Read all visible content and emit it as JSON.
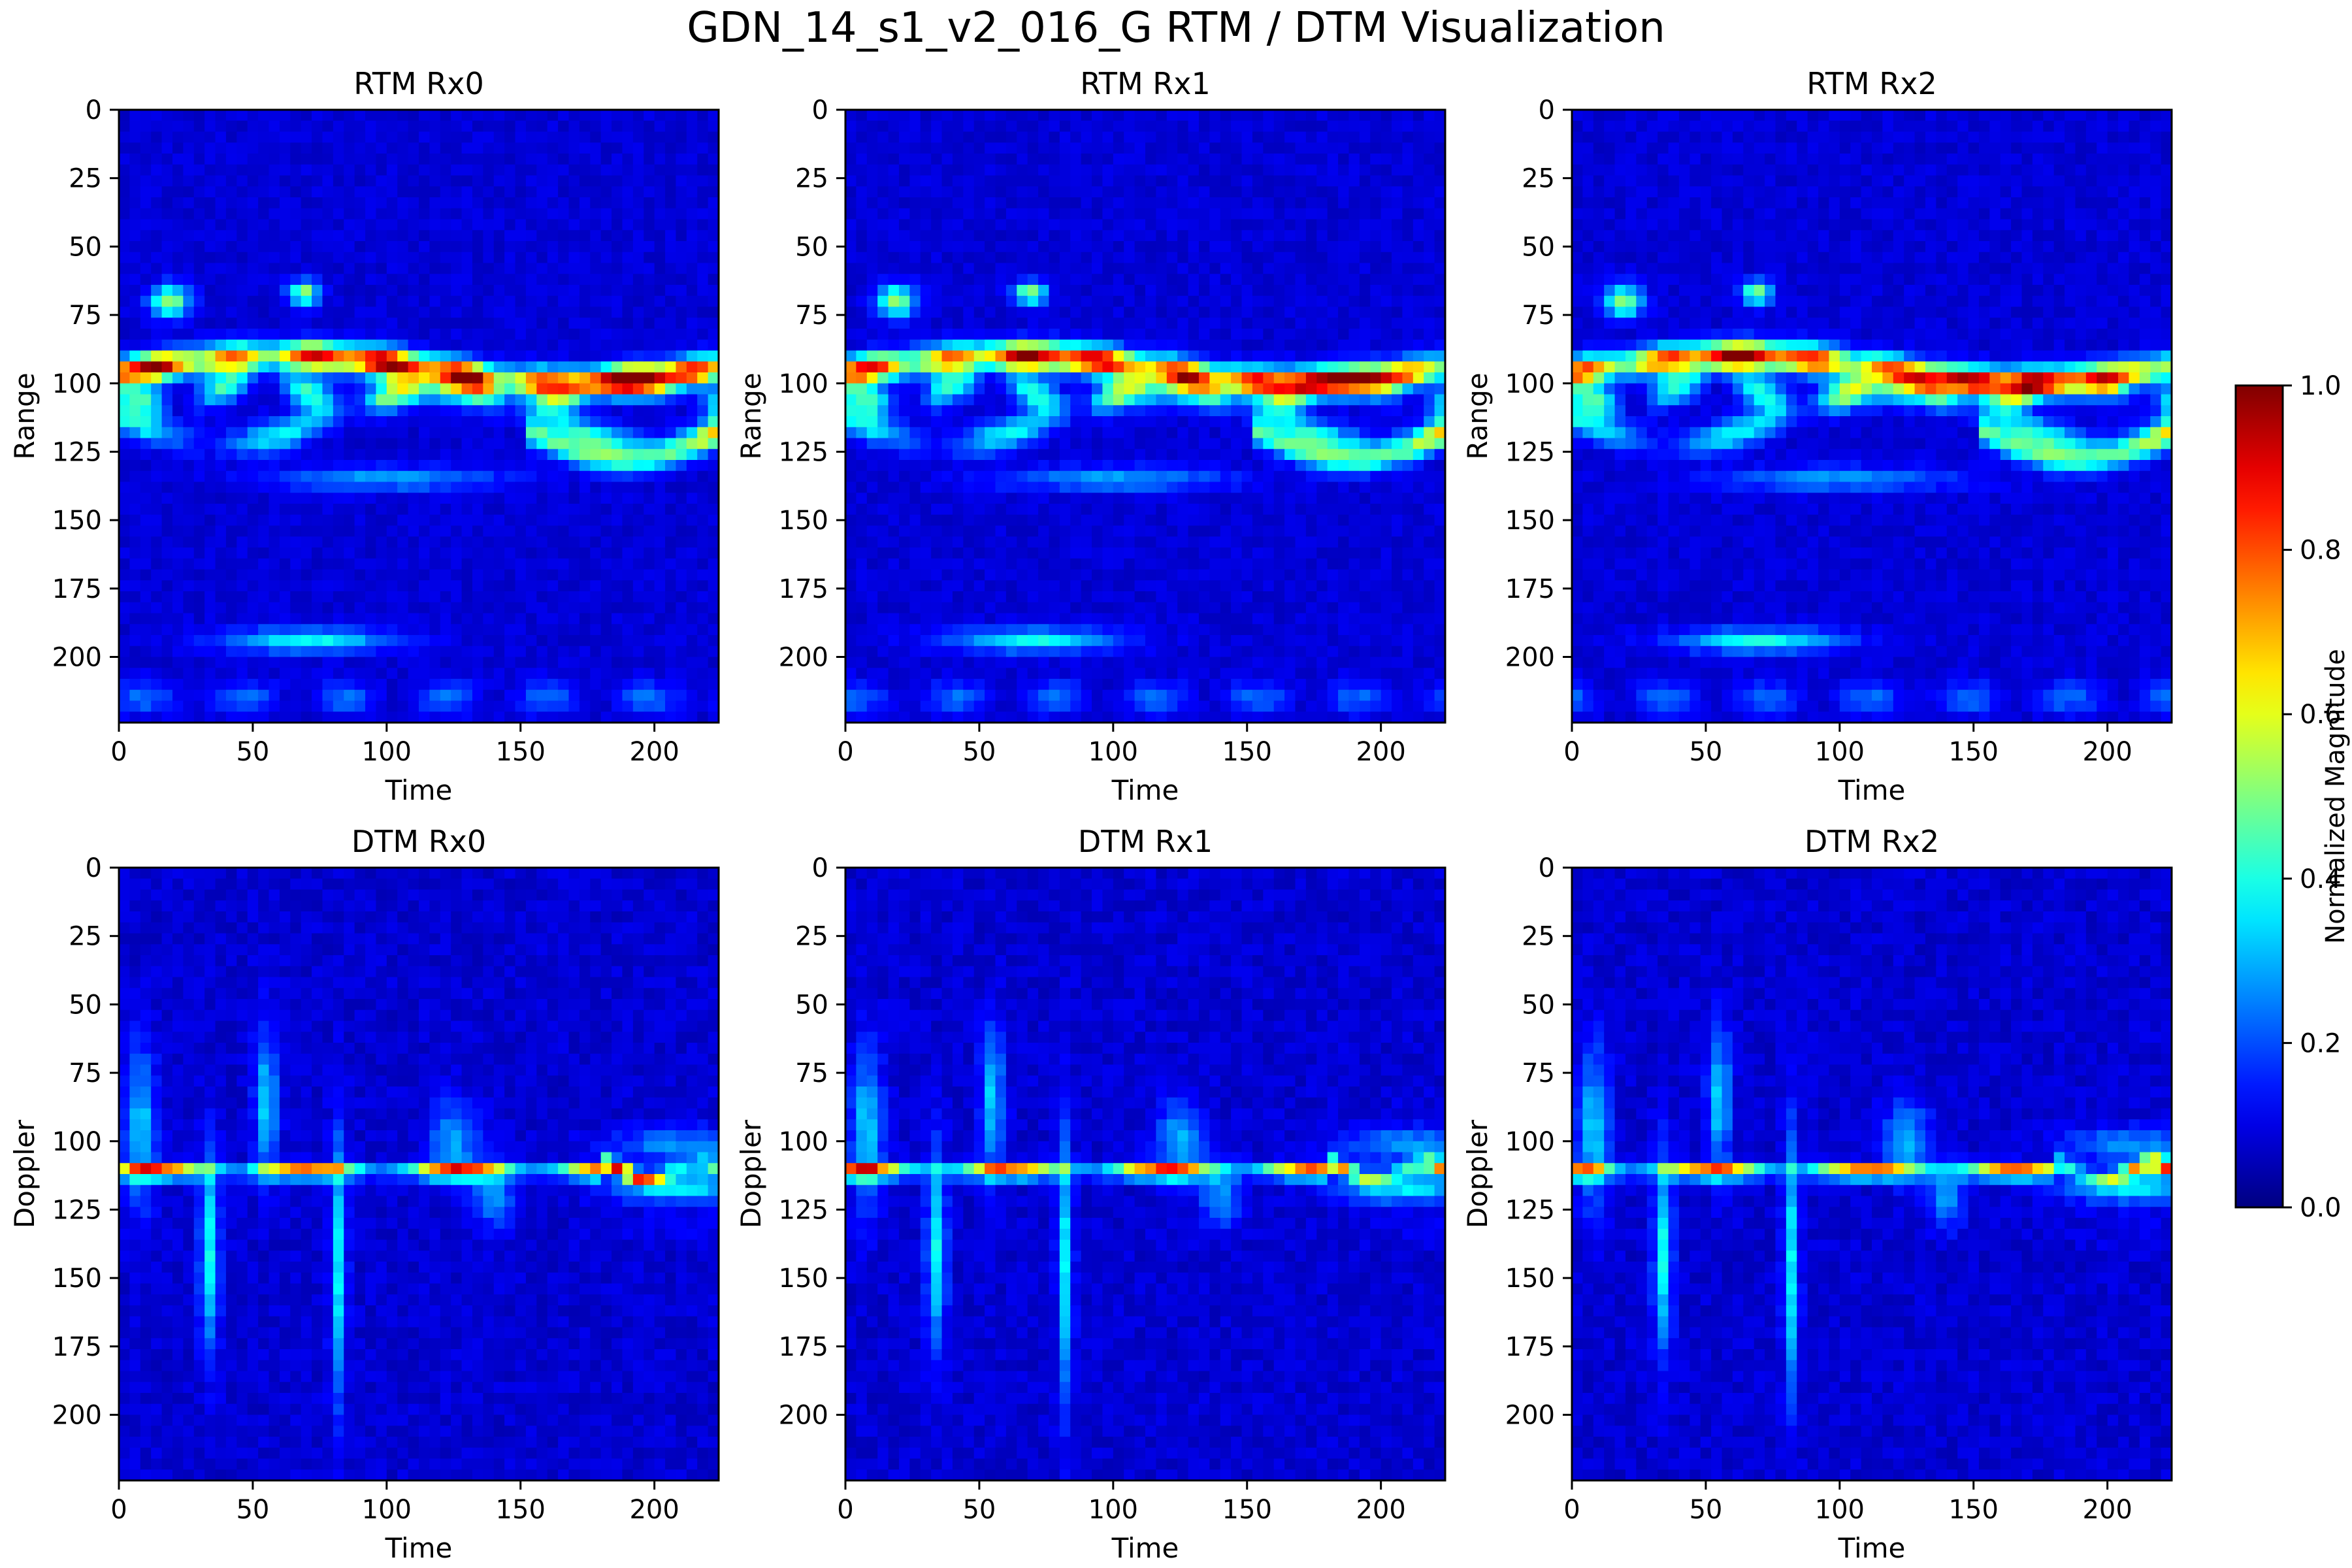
{
  "figure": {
    "suptitle": "GDN_14_s1_v2_016_G RTM / DTM Visualization"
  },
  "colorbar": {
    "label": "Normalized Magnitude",
    "ticks": [
      "0.0",
      "0.2",
      "0.4",
      "0.6",
      "0.8",
      "1.0"
    ],
    "colormap": "jet",
    "range": [
      0,
      1
    ]
  },
  "chart_data": [
    {
      "type": "heatmap",
      "title": "RTM Rx0",
      "xlabel": "Time",
      "ylabel": "Range",
      "xlim": [
        0,
        224
      ],
      "ylim": [
        224,
        0
      ],
      "xticks": [
        "0",
        "50",
        "100",
        "150",
        "200"
      ],
      "yticks": [
        "0",
        "25",
        "50",
        "75",
        "100",
        "125",
        "150",
        "175",
        "200"
      ],
      "features": [
        {
          "description": "strong band",
          "time": [
            0,
            224
          ],
          "range": [
            85,
            110
          ],
          "peak": 1.0
        },
        {
          "description": "blob",
          "time": [
            10,
            28
          ],
          "range": [
            65,
            75
          ],
          "peak": 0.45
        },
        {
          "description": "blob",
          "time": [
            62,
            75
          ],
          "range": [
            62,
            72
          ],
          "peak": 0.45
        },
        {
          "description": "faint band",
          "time": [
            40,
            100
          ],
          "range": [
            188,
            200
          ],
          "peak": 0.35
        }
      ]
    },
    {
      "type": "heatmap",
      "title": "RTM Rx1",
      "xlabel": "Time",
      "ylabel": "Range",
      "xlim": [
        0,
        224
      ],
      "ylim": [
        224,
        0
      ],
      "xticks": [
        "0",
        "50",
        "100",
        "150",
        "200"
      ],
      "yticks": [
        "0",
        "25",
        "50",
        "75",
        "100",
        "125",
        "150",
        "175",
        "200"
      ],
      "features": [
        {
          "description": "strong band",
          "time": [
            0,
            224
          ],
          "range": [
            85,
            110
          ],
          "peak": 1.0
        },
        {
          "description": "blob",
          "time": [
            10,
            28
          ],
          "range": [
            65,
            75
          ],
          "peak": 0.45
        },
        {
          "description": "blob",
          "time": [
            62,
            75
          ],
          "range": [
            62,
            72
          ],
          "peak": 0.45
        },
        {
          "description": "faint band",
          "time": [
            40,
            95
          ],
          "range": [
            190,
            198
          ],
          "peak": 0.35
        }
      ]
    },
    {
      "type": "heatmap",
      "title": "RTM Rx2",
      "xlabel": "Time",
      "ylabel": "Range",
      "xlim": [
        0,
        224
      ],
      "ylim": [
        224,
        0
      ],
      "xticks": [
        "0",
        "50",
        "100",
        "150",
        "200"
      ],
      "yticks": [
        "0",
        "25",
        "50",
        "75",
        "100",
        "125",
        "150",
        "175",
        "200"
      ],
      "features": [
        {
          "description": "strong band",
          "time": [
            0,
            224
          ],
          "range": [
            85,
            110
          ],
          "peak": 1.0
        },
        {
          "description": "blob",
          "time": [
            10,
            28
          ],
          "range": [
            65,
            75
          ],
          "peak": 0.45
        },
        {
          "description": "blob",
          "time": [
            62,
            75
          ],
          "range": [
            62,
            72
          ],
          "peak": 0.45
        },
        {
          "description": "faint band",
          "time": [
            40,
            95
          ],
          "range": [
            190,
            198
          ],
          "peak": 0.35
        }
      ]
    },
    {
      "type": "heatmap",
      "title": "DTM Rx0",
      "xlabel": "Time",
      "ylabel": "Doppler",
      "xlim": [
        0,
        224
      ],
      "ylim": [
        224,
        0
      ],
      "xticks": [
        "0",
        "50",
        "100",
        "150",
        "200"
      ],
      "yticks": [
        "0",
        "25",
        "50",
        "75",
        "100",
        "125",
        "150",
        "175",
        "200"
      ],
      "features": [
        {
          "description": "zero-Doppler line",
          "time": [
            0,
            224
          ],
          "doppler": [
            108,
            115
          ],
          "peak": 0.85
        },
        {
          "description": "vertical streak",
          "time": [
            30,
            38
          ],
          "doppler": [
            110,
            170
          ],
          "peak": 0.4
        },
        {
          "description": "vertical streak",
          "time": [
            78,
            85
          ],
          "doppler": [
            100,
            190
          ],
          "peak": 0.35
        },
        {
          "description": "spread",
          "time": [
            180,
            224
          ],
          "doppler": [
            100,
            130
          ],
          "peak": 0.7
        }
      ]
    },
    {
      "type": "heatmap",
      "title": "DTM Rx1",
      "xlabel": "Time",
      "ylabel": "Doppler",
      "xlim": [
        0,
        224
      ],
      "ylim": [
        224,
        0
      ],
      "xticks": [
        "0",
        "50",
        "100",
        "150",
        "200"
      ],
      "yticks": [
        "0",
        "25",
        "50",
        "75",
        "100",
        "125",
        "150",
        "175",
        "200"
      ],
      "features": [
        {
          "description": "zero-Doppler line",
          "time": [
            0,
            224
          ],
          "doppler": [
            108,
            115
          ],
          "peak": 0.85
        },
        {
          "description": "vertical streak",
          "time": [
            30,
            38
          ],
          "doppler": [
            110,
            170
          ],
          "peak": 0.4
        },
        {
          "description": "vertical streak",
          "time": [
            78,
            85
          ],
          "doppler": [
            100,
            190
          ],
          "peak": 0.35
        },
        {
          "description": "spread",
          "time": [
            180,
            224
          ],
          "doppler": [
            100,
            130
          ],
          "peak": 0.7
        }
      ]
    },
    {
      "type": "heatmap",
      "title": "DTM Rx2",
      "xlabel": "Time",
      "ylabel": "Doppler",
      "xlim": [
        0,
        224
      ],
      "ylim": [
        224,
        0
      ],
      "xticks": [
        "0",
        "50",
        "100",
        "150",
        "200"
      ],
      "yticks": [
        "0",
        "25",
        "50",
        "75",
        "100",
        "125",
        "150",
        "175",
        "200"
      ],
      "features": [
        {
          "description": "zero-Doppler line",
          "time": [
            0,
            224
          ],
          "doppler": [
            108,
            115
          ],
          "peak": 0.85
        },
        {
          "description": "vertical streak",
          "time": [
            30,
            38
          ],
          "doppler": [
            110,
            170
          ],
          "peak": 0.4
        },
        {
          "description": "vertical streak",
          "time": [
            78,
            85
          ],
          "doppler": [
            100,
            190
          ],
          "peak": 0.35
        },
        {
          "description": "spread",
          "time": [
            180,
            224
          ],
          "doppler": [
            100,
            130
          ],
          "peak": 0.7
        }
      ]
    }
  ]
}
